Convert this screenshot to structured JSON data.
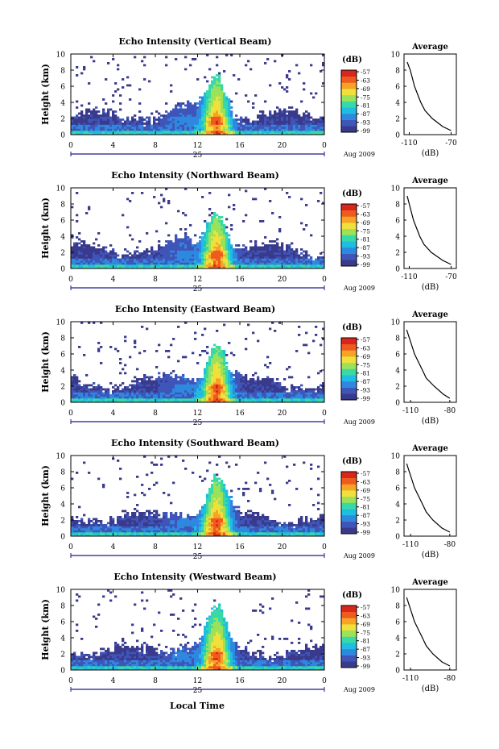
{
  "footer": {
    "xlabel": "Local Time"
  },
  "colorbar": {
    "unit": "(dB)",
    "ticks": [
      "-57",
      "-63",
      "-69",
      "-75",
      "-81",
      "-87",
      "-93",
      "-99"
    ],
    "colors": [
      "#3a3a8c",
      "#3f55b8",
      "#2f88e0",
      "#1fbde0",
      "#38d9a8",
      "#9be25a",
      "#f0e03c",
      "#f6a326",
      "#ef5b1e",
      "#d9261c"
    ]
  },
  "date_label": "Aug 2009",
  "day_label": "25",
  "chart_data": [
    {
      "type": "heatmap",
      "title": "Echo Intensity (Vertical Beam)",
      "ylabel": "Height (km)",
      "x_ticks": [
        "0",
        "4",
        "8",
        "12",
        "16",
        "20",
        "0"
      ],
      "y_ticks": [
        "0",
        "2",
        "4",
        "6",
        "8",
        "10"
      ],
      "xlim": [
        0,
        24
      ],
      "ylim": [
        0,
        10
      ],
      "scale_db": [
        -99,
        -57
      ],
      "profile": {
        "title": "Average",
        "xlabel": "(dB)",
        "x_ticks": [
          "-110",
          "-70"
        ],
        "xlim": [
          -115,
          -65
        ],
        "heights": [
          0.5,
          1,
          2,
          3,
          4,
          5,
          6,
          7,
          8,
          9
        ],
        "values": [
          -70,
          -78,
          -88,
          -95,
          -99,
          -102,
          -105,
          -107,
          -109,
          -112
        ]
      }
    },
    {
      "type": "heatmap",
      "title": "Echo Intensity (Northward Beam)",
      "ylabel": "Height (km)",
      "x_ticks": [
        "0",
        "4",
        "8",
        "12",
        "16",
        "20",
        "0"
      ],
      "y_ticks": [
        "0",
        "2",
        "4",
        "6",
        "8",
        "10"
      ],
      "xlim": [
        0,
        24
      ],
      "ylim": [
        0,
        10
      ],
      "scale_db": [
        -99,
        -57
      ],
      "profile": {
        "title": "Average",
        "xlabel": "(dB)",
        "x_ticks": [
          "-110",
          "-70"
        ],
        "xlim": [
          -115,
          -65
        ],
        "heights": [
          0.5,
          1,
          2,
          3,
          4,
          5,
          6,
          7,
          8,
          9
        ],
        "values": [
          -70,
          -78,
          -89,
          -96,
          -100,
          -103,
          -106,
          -108,
          -110,
          -112
        ]
      }
    },
    {
      "type": "heatmap",
      "title": "Echo Intensity (Eastward Beam)",
      "ylabel": "Height (km)",
      "x_ticks": [
        "0",
        "4",
        "8",
        "12",
        "16",
        "20",
        "0"
      ],
      "y_ticks": [
        "0",
        "2",
        "4",
        "6",
        "8",
        "10"
      ],
      "xlim": [
        0,
        24
      ],
      "ylim": [
        0,
        10
      ],
      "scale_db": [
        -99,
        -57
      ],
      "profile": {
        "title": "Average",
        "xlabel": "(dB)",
        "x_ticks": [
          "-110",
          "-80"
        ],
        "xlim": [
          -115,
          -75
        ],
        "heights": [
          0.5,
          1,
          2,
          3,
          4,
          5,
          6,
          7,
          8,
          9
        ],
        "values": [
          -80,
          -85,
          -92,
          -98,
          -101,
          -104,
          -107,
          -109,
          -111,
          -113
        ]
      }
    },
    {
      "type": "heatmap",
      "title": "Echo Intensity (Southward Beam)",
      "ylabel": "Height (km)",
      "x_ticks": [
        "0",
        "4",
        "8",
        "12",
        "16",
        "20",
        "0"
      ],
      "y_ticks": [
        "0",
        "2",
        "4",
        "6",
        "8",
        "10"
      ],
      "xlim": [
        0,
        24
      ],
      "ylim": [
        0,
        10
      ],
      "scale_db": [
        -99,
        -57
      ],
      "profile": {
        "title": "Average",
        "xlabel": "(dB)",
        "x_ticks": [
          "-110",
          "-80"
        ],
        "xlim": [
          -115,
          -75
        ],
        "heights": [
          0.5,
          1,
          2,
          3,
          4,
          5,
          6,
          7,
          8,
          9
        ],
        "values": [
          -80,
          -86,
          -93,
          -98,
          -101,
          -104,
          -107,
          -109,
          -111,
          -113
        ]
      }
    },
    {
      "type": "heatmap",
      "title": "Echo Intensity (Westward Beam)",
      "ylabel": "Height (km)",
      "x_ticks": [
        "0",
        "4",
        "8",
        "12",
        "16",
        "20",
        "0"
      ],
      "y_ticks": [
        "0",
        "2",
        "4",
        "6",
        "8",
        "10"
      ],
      "xlim": [
        0,
        24
      ],
      "ylim": [
        0,
        10
      ],
      "scale_db": [
        -99,
        -57
      ],
      "profile": {
        "title": "Average",
        "xlabel": "(dB)",
        "x_ticks": [
          "-110",
          "-80"
        ],
        "xlim": [
          -115,
          -75
        ],
        "heights": [
          0.5,
          1,
          2,
          3,
          4,
          5,
          6,
          7,
          8,
          9
        ],
        "values": [
          -80,
          -86,
          -93,
          -98,
          -101,
          -104,
          -107,
          -109,
          -111,
          -113
        ]
      }
    }
  ]
}
